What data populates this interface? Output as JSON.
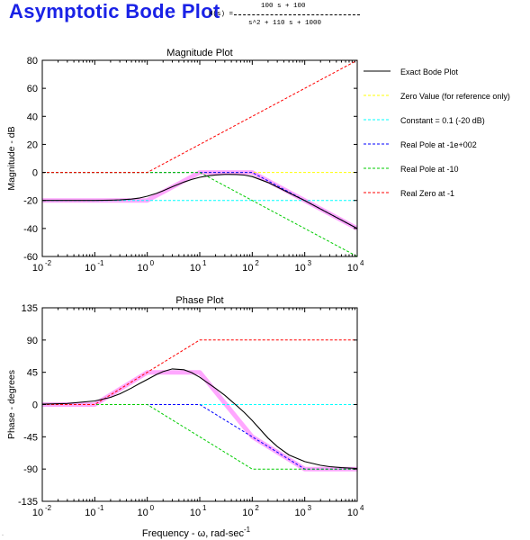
{
  "header": {
    "title": "Asymptotic Bode Plot",
    "tf_lhs": "H(s) =",
    "tf_num": "100 s + 100",
    "tf_den": "s^2 + 110 s + 1000"
  },
  "colors": {
    "exact": "#000000",
    "zero_value": "#ffff00",
    "constant": "#00ffff",
    "pole_100": "#0000ff",
    "pole_10": "#00cc00",
    "zero_1": "#ff0000",
    "asymptote_sum": "#ff99ff"
  },
  "chart_data": [
    {
      "type": "line",
      "title": "Magnitude Plot",
      "ylabel": "Magnitude - dB",
      "xlabel": "",
      "xscale": "log",
      "xlim": [
        0.01,
        10000
      ],
      "ylim": [
        -60,
        80
      ],
      "yticks": [
        -60,
        -40,
        -20,
        0,
        20,
        40,
        60,
        80
      ],
      "xtick_labels": [
        "10",
        "10",
        "10",
        "10",
        "10",
        "10",
        "10"
      ],
      "xtick_exponents": [
        "-2",
        "-1",
        "0",
        "1",
        "2",
        "3",
        "4"
      ],
      "grid": false,
      "legend_position": "right",
      "series": [
        {
          "name": "Exact Bode Plot",
          "color": "#000000",
          "x": [
            0.01,
            0.03,
            0.1,
            0.2,
            0.3,
            0.5,
            0.7,
            1,
            1.5,
            2,
            3,
            5,
            7,
            10,
            15,
            20,
            30,
            50,
            70,
            100,
            200,
            500,
            1000,
            3000,
            10000
          ],
          "y": [
            -20,
            -20,
            -19.96,
            -19.8,
            -19.6,
            -19.0,
            -18.3,
            -17.0,
            -15.0,
            -13.1,
            -10.2,
            -6.9,
            -5.0,
            -3.5,
            -2.3,
            -1.8,
            -1.4,
            -1.5,
            -1.9,
            -3.0,
            -7.2,
            -14.6,
            -20.1,
            -29.6,
            -40.0
          ]
        },
        {
          "name": "Zero Value (for reference only)",
          "color": "#ffff00",
          "x": [
            0.01,
            10000
          ],
          "y": [
            0,
            0
          ]
        },
        {
          "name": "Constant = 0.1 (-20 dB)",
          "color": "#00ffff",
          "x": [
            0.01,
            10000
          ],
          "y": [
            -20,
            -20
          ]
        },
        {
          "name": "Real Pole at -1e+002",
          "color": "#0000ff",
          "x": [
            0.01,
            100,
            10000
          ],
          "y": [
            0,
            0,
            -40
          ]
        },
        {
          "name": "Real Pole at -10",
          "color": "#00cc00",
          "x": [
            0.01,
            10,
            10000
          ],
          "y": [
            0,
            0,
            -60
          ]
        },
        {
          "name": "Real Zero at -1",
          "color": "#ff0000",
          "x": [
            0.01,
            1,
            10000
          ],
          "y": [
            0,
            0,
            80
          ]
        },
        {
          "color": "#ff99ff",
          "x": [
            0.01,
            1,
            10,
            100,
            10000
          ],
          "y": [
            -20,
            -20,
            0,
            0,
            -40
          ]
        }
      ]
    },
    {
      "type": "line",
      "title": "Phase Plot",
      "ylabel": "Phase - degrees",
      "xlabel": "Frequency - ω, rad-sec",
      "xlabel_superscript": "-1",
      "xscale": "log",
      "xlim": [
        0.01,
        10000
      ],
      "ylim": [
        -135,
        135
      ],
      "yticks": [
        -135,
        -90,
        -45,
        0,
        45,
        90,
        135
      ],
      "xtick_labels": [
        "10",
        "10",
        "10",
        "10",
        "10",
        "10",
        "10"
      ],
      "xtick_exponents": [
        "-2",
        "-1",
        "0",
        "1",
        "2",
        "3",
        "4"
      ],
      "grid": false,
      "series": [
        {
          "name": "Exact Bode Plot",
          "color": "#000000",
          "x": [
            0.01,
            0.03,
            0.1,
            0.2,
            0.3,
            0.5,
            0.7,
            1,
            1.5,
            2,
            3,
            5,
            7,
            10,
            15,
            20,
            30,
            50,
            70,
            100,
            200,
            300,
            500,
            1000,
            2000,
            3000,
            5000,
            10000
          ],
          "y": [
            0.5,
            1.5,
            5,
            10,
            15,
            23,
            29,
            35,
            42,
            46,
            49.7,
            48.6,
            44.6,
            38.1,
            29,
            22.5,
            12.9,
            -1.2,
            -10.8,
            -22.3,
            -46.9,
            -58.7,
            -70.3,
            -79.6,
            -84.8,
            -86.6,
            -88,
            -89.1
          ]
        },
        {
          "name": "Zero Value (for reference only)",
          "color": "#ffff00",
          "x": [
            0.01,
            10000
          ],
          "y": [
            0,
            0
          ]
        },
        {
          "name": "Constant = 0.1 (-20 dB)",
          "color": "#00ffff",
          "x": [
            0.01,
            10000
          ],
          "y": [
            0,
            0
          ]
        },
        {
          "name": "Real Pole at -1e+002",
          "color": "#0000ff",
          "x": [
            0.01,
            10,
            1000,
            10000
          ],
          "y": [
            0,
            0,
            -90,
            -90
          ]
        },
        {
          "name": "Real Pole at -10",
          "color": "#00cc00",
          "x": [
            0.01,
            1,
            100,
            10000
          ],
          "y": [
            0,
            0,
            -90,
            -90
          ]
        },
        {
          "name": "Real Zero at -1",
          "color": "#ff0000",
          "x": [
            0.01,
            0.1,
            10,
            10000
          ],
          "y": [
            0,
            0,
            90,
            90
          ]
        },
        {
          "color": "#ff99ff",
          "x": [
            0.01,
            0.1,
            1,
            10,
            100,
            1000,
            10000
          ],
          "y": [
            0,
            0,
            45,
            45,
            -45,
            -90,
            -90
          ]
        }
      ]
    }
  ]
}
